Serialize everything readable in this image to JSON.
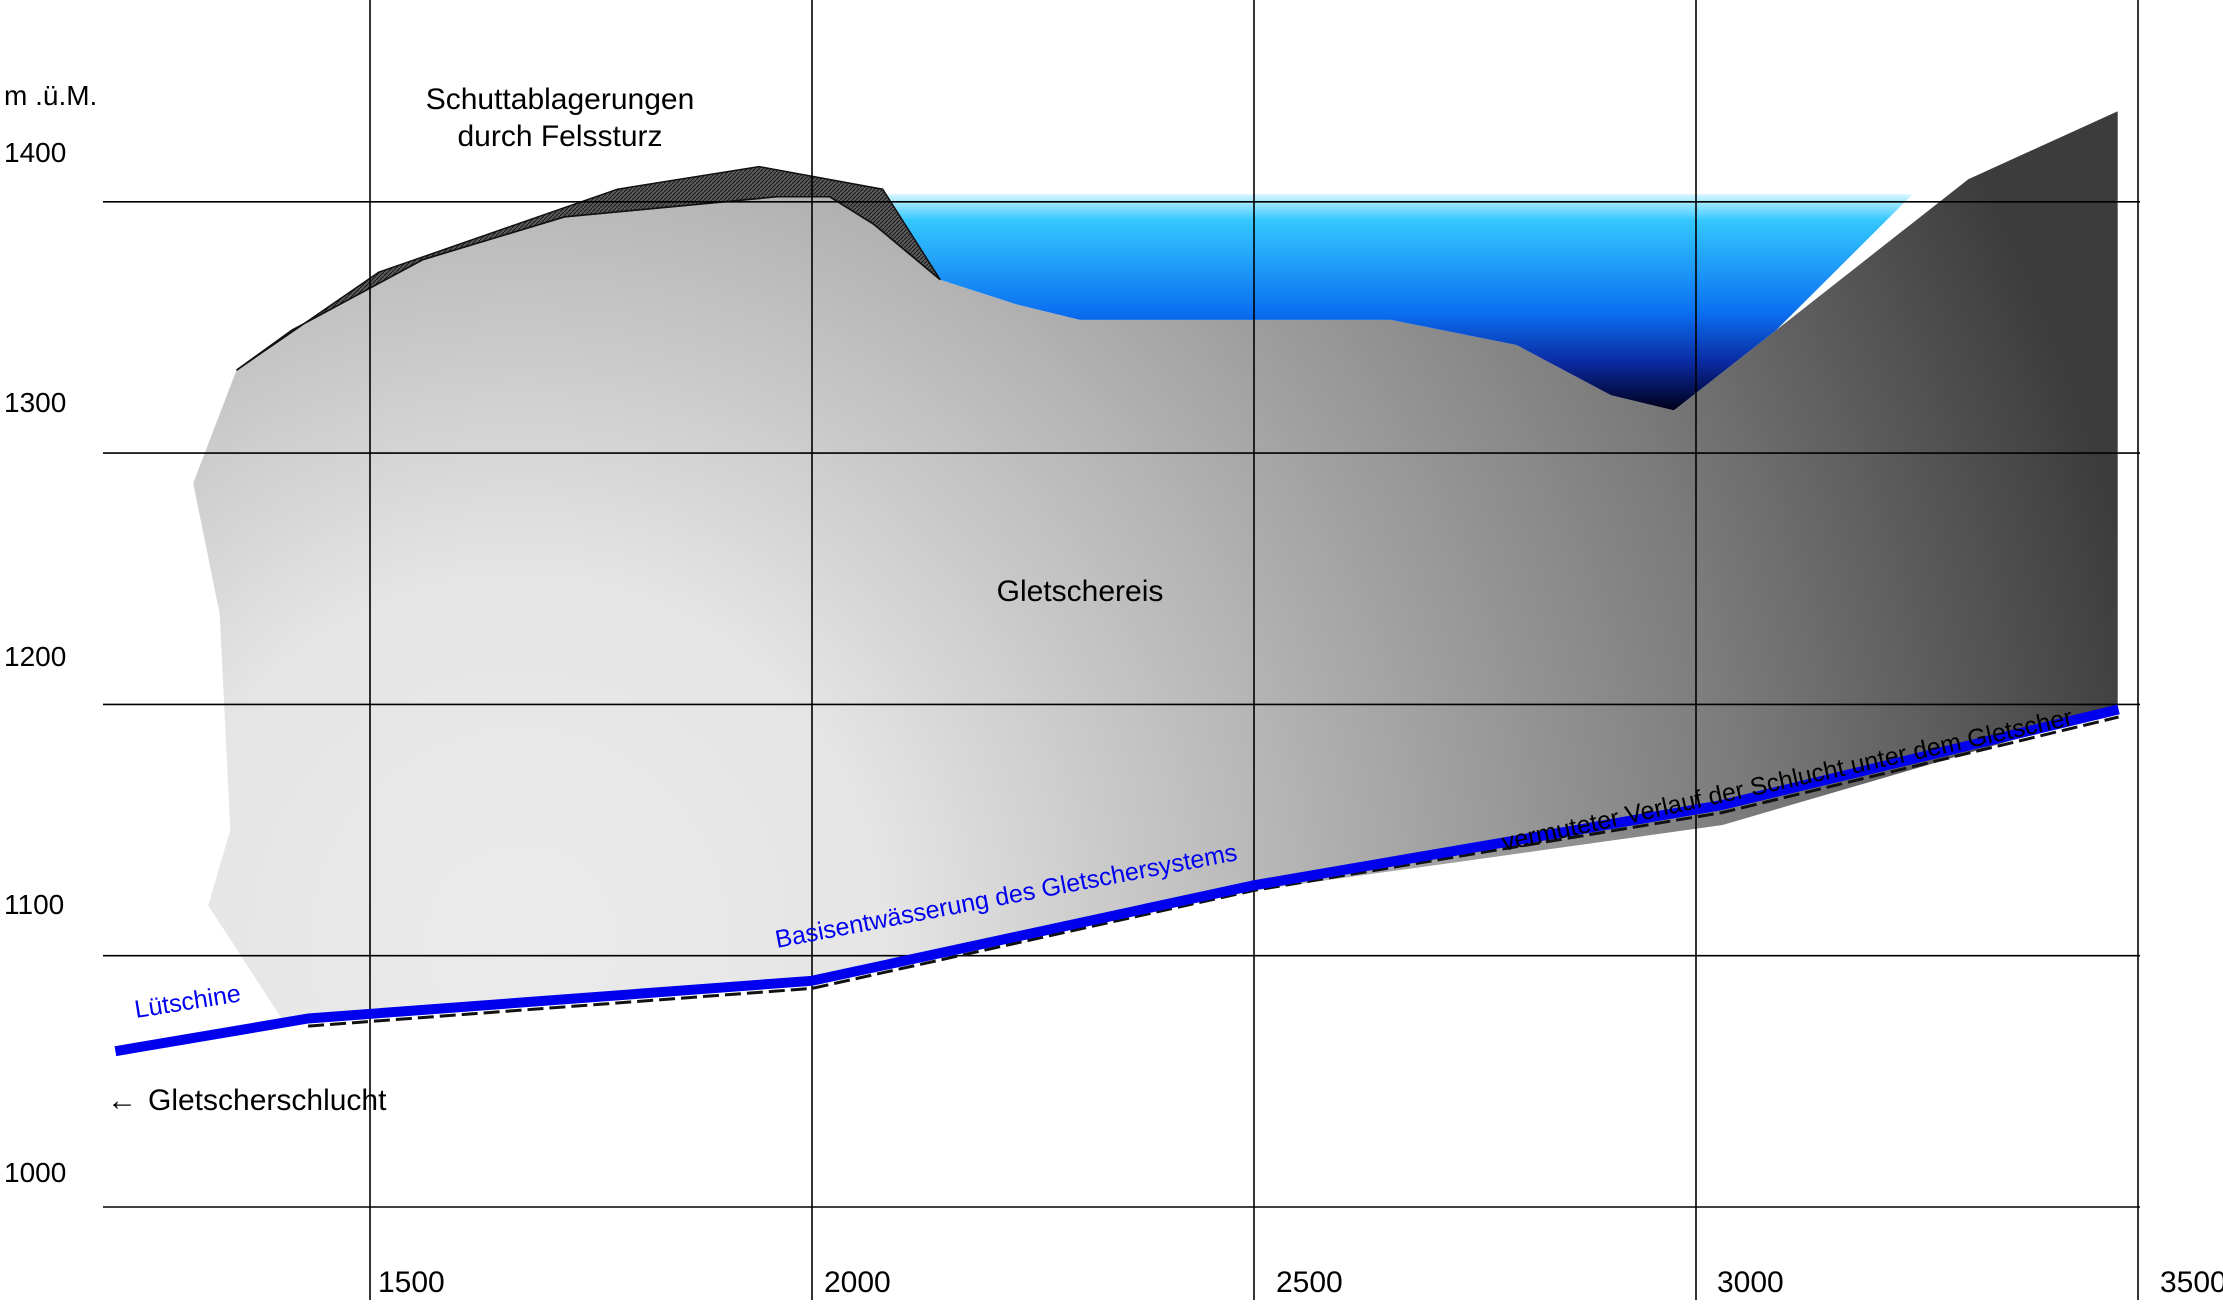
{
  "chart_data": {
    "type": "area",
    "ylabel": "m .ü.M.",
    "xlim": [
      1200,
      3500
    ],
    "ylim": [
      1000,
      1420
    ],
    "y_ticks": [
      "1000",
      "1100",
      "1200",
      "1300",
      "1400"
    ],
    "x_ticks": [
      "1500",
      "2000",
      "2500",
      "3000",
      "3500"
    ],
    "grid": true,
    "labels": {
      "debris": [
        "Schuttablagerungen",
        "durch Felssturz"
      ],
      "ice": "Gletschereis",
      "river": "Lütschine",
      "drainage": "Basisentwässerung des Gletschersystems",
      "gorge_path": "vermuteter Verlauf der Schlucht unter dem Gletscher",
      "gorge": "Gletscherschlucht",
      "arrow": "←"
    },
    "colors": {
      "ice_light": "#e8e8e8",
      "ice_dark": "#4a4a4a",
      "lake_top": "#c8f0ff",
      "lake_mid": "#0a72f0",
      "lake_bottom": "#000010",
      "river": "#0000ee",
      "debris": "#444444",
      "grid": "#000000"
    },
    "series": [
      {
        "name": "Gletschereis",
        "points": [
          [
            1349,
            1333
          ],
          [
            1412,
            1349
          ],
          [
            1560,
            1377
          ],
          [
            1720,
            1394
          ],
          [
            1960,
            1402
          ],
          [
            2020,
            1402
          ],
          [
            2070,
            1391
          ],
          [
            2145,
            1369
          ],
          [
            2233,
            1359
          ],
          [
            2303,
            1353
          ],
          [
            2480,
            1353
          ],
          [
            2655,
            1353
          ],
          [
            2797,
            1343
          ],
          [
            2904,
            1323
          ],
          [
            2975,
            1317
          ],
          [
            3091,
            1349
          ],
          [
            3308,
            1409
          ],
          [
            3477,
            1436
          ],
          [
            3477,
            1198
          ],
          [
            3030,
            1152
          ],
          [
            2500,
            1126
          ],
          [
            2000,
            1088
          ],
          [
            1430,
            1075
          ],
          [
            1400,
            1075
          ],
          [
            1317,
            1120
          ],
          [
            1342,
            1150
          ],
          [
            1330,
            1236
          ],
          [
            1300,
            1288
          ],
          [
            1349,
            1333
          ]
        ]
      },
      {
        "name": "Schuttablagerungen",
        "points": [
          [
            1349,
            1333
          ],
          [
            1412,
            1349
          ],
          [
            1560,
            1377
          ],
          [
            1720,
            1394
          ],
          [
            1960,
            1402
          ],
          [
            2020,
            1402
          ],
          [
            2070,
            1391
          ],
          [
            2145,
            1369
          ],
          [
            2080,
            1405
          ],
          [
            1940,
            1414
          ],
          [
            1780,
            1405
          ],
          [
            1510,
            1372
          ],
          [
            1349,
            1333
          ]
        ]
      },
      {
        "name": "See",
        "points": [
          [
            2055,
            1403
          ],
          [
            3245,
            1403
          ],
          [
            3091,
            1349
          ],
          [
            2975,
            1317
          ],
          [
            2904,
            1323
          ],
          [
            2797,
            1343
          ],
          [
            2655,
            1353
          ],
          [
            2480,
            1353
          ],
          [
            2303,
            1353
          ],
          [
            2233,
            1359
          ],
          [
            2145,
            1369
          ],
          [
            2055,
            1403
          ]
        ]
      },
      {
        "name": "Lütschine",
        "points": [
          [
            1212,
            1062
          ],
          [
            1430,
            1075
          ],
          [
            2000,
            1090
          ],
          [
            2500,
            1128
          ],
          [
            3030,
            1160
          ],
          [
            3478,
            1198
          ]
        ]
      },
      {
        "name": "vermuteter Verlauf der Schlucht unter dem Gletscher",
        "points": [
          [
            1430,
            1072
          ],
          [
            2000,
            1087
          ],
          [
            2500,
            1126
          ],
          [
            3030,
            1157
          ],
          [
            3478,
            1195
          ]
        ]
      }
    ]
  }
}
